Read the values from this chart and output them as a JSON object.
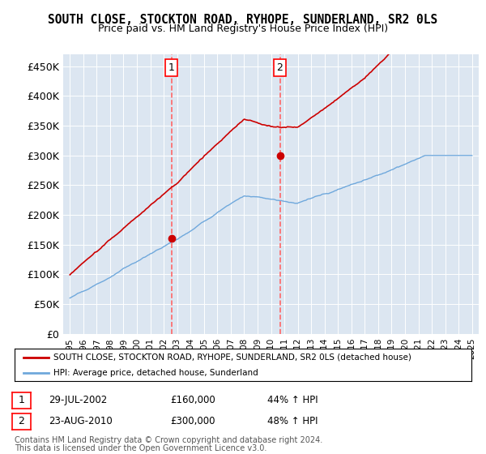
{
  "title": "SOUTH CLOSE, STOCKTON ROAD, RYHOPE, SUNDERLAND, SR2 0LS",
  "subtitle": "Price paid vs. HM Land Registry's House Price Index (HPI)",
  "ylim": [
    0,
    470000
  ],
  "yticks": [
    0,
    50000,
    100000,
    150000,
    200000,
    250000,
    300000,
    350000,
    400000,
    450000
  ],
  "ytick_labels": [
    "£0",
    "£50K",
    "£100K",
    "£150K",
    "£200K",
    "£250K",
    "£300K",
    "£350K",
    "£400K",
    "£450K"
  ],
  "hpi_color": "#6fa8dc",
  "price_color": "#cc0000",
  "vline_color": "#ff6666",
  "background_color": "#dce6f1",
  "point1_value": 160000,
  "point1_date_str": "29-JUL-2002",
  "point1_price_str": "£160,000",
  "point1_hpi_str": "44% ↑ HPI",
  "point2_value": 300000,
  "point2_date_str": "23-AUG-2010",
  "point2_price_str": "£300,000",
  "point2_hpi_str": "48% ↑ HPI",
  "legend_line1": "SOUTH CLOSE, STOCKTON ROAD, RYHOPE, SUNDERLAND, SR2 0LS (detached house)",
  "legend_line2": "HPI: Average price, detached house, Sunderland",
  "footer1": "Contains HM Land Registry data © Crown copyright and database right 2024.",
  "footer2": "This data is licensed under the Open Government Licence v3.0.",
  "xtick_labels": [
    "1995",
    "1996",
    "1997",
    "1998",
    "1999",
    "2000",
    "2001",
    "2002",
    "2003",
    "2004",
    "2005",
    "2006",
    "2007",
    "2008",
    "2009",
    "2010",
    "2011",
    "2012",
    "2013",
    "2014",
    "2015",
    "2016",
    "2017",
    "2018",
    "2019",
    "2020",
    "2021",
    "2022",
    "2023",
    "2024",
    "2025"
  ]
}
